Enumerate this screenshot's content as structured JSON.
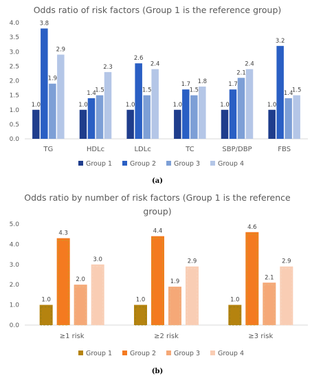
{
  "colors": {
    "a": [
      "#1f3d8c",
      "#2a5fc4",
      "#7d9fd6",
      "#b4c6e7"
    ],
    "b": [
      "#b5830f",
      "#f47a20",
      "#f5a877",
      "#f9cdb4"
    ],
    "b_inner": [
      "#8e7a17",
      "#c5a020",
      "#e8ba8a",
      "#f6d8c4"
    ],
    "text": "#595959",
    "axis": "#d9d9d9"
  },
  "chart_data": [
    {
      "type": "bar",
      "title": "Odds ratio of risk factors (Group 1 is the reference group)",
      "caption": "(a)",
      "categories": [
        "TG",
        "HDLc",
        "LDLc",
        "TC",
        "SBP/DBP",
        "FBS"
      ],
      "series": [
        {
          "name": "Group 1",
          "values": [
            1.0,
            1.0,
            1.0,
            1.0,
            1.0,
            1.0
          ]
        },
        {
          "name": "Group 2",
          "values": [
            3.8,
            1.4,
            2.6,
            1.7,
            1.7,
            3.2
          ]
        },
        {
          "name": "Group 3",
          "values": [
            1.9,
            1.5,
            1.5,
            1.5,
            2.1,
            1.4
          ]
        },
        {
          "name": "Group 4",
          "values": [
            2.9,
            2.3,
            2.4,
            1.8,
            2.4,
            1.5
          ]
        }
      ],
      "yticks": [
        "0.0",
        "0.5",
        "1.0",
        "1.5",
        "2.0",
        "2.5",
        "3.0",
        "3.5",
        "4.0"
      ],
      "ylim": [
        0,
        4.0
      ],
      "legend": "bottom"
    },
    {
      "type": "bar",
      "title_lines": [
        "Odds ratio by number of risk factors (Group 1 is the reference",
        "group)"
      ],
      "caption": "(b)",
      "categories": [
        "≥1 risk",
        "≥2 risk",
        "≥3 risk"
      ],
      "series": [
        {
          "name": "Group 1",
          "values": [
            1.0,
            1.0,
            1.0
          ]
        },
        {
          "name": "Group 2",
          "values": [
            4.3,
            4.4,
            4.6
          ]
        },
        {
          "name": "Group 3",
          "values": [
            2.0,
            1.9,
            2.1
          ]
        },
        {
          "name": "Group 4",
          "values": [
            3.0,
            2.9,
            2.9
          ]
        }
      ],
      "yticks": [
        "0.0",
        "1.0",
        "2.0",
        "3.0",
        "4.0",
        "5.0"
      ],
      "ylim": [
        0,
        5.0
      ],
      "legend": "bottom"
    }
  ]
}
